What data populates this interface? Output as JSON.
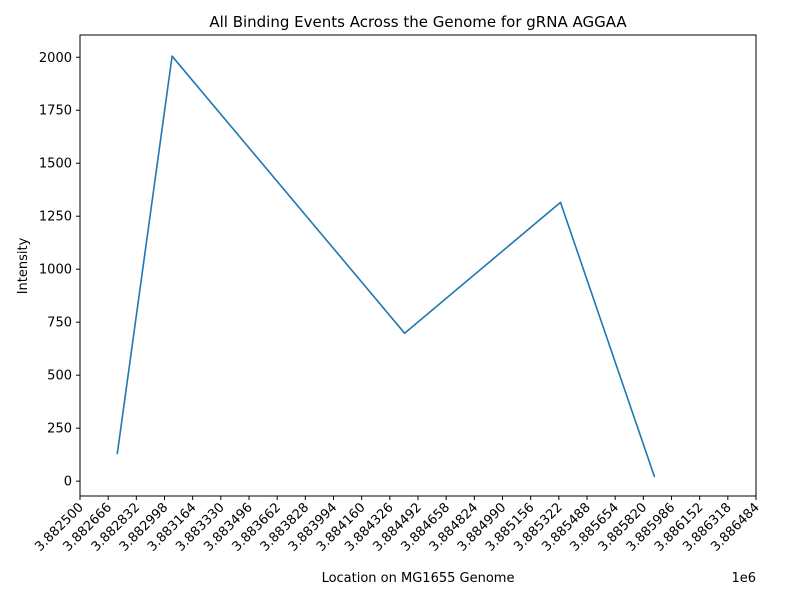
{
  "chart_data": {
    "type": "line",
    "title": "All Binding Events Across the Genome for gRNA AGGAA",
    "xlabel": "Location on MG1655 Genome",
    "ylabel": "Intensity",
    "x_offset_label": "1e6",
    "xlim": [
      3882500,
      3886484
    ],
    "ylim": [
      -70,
      2105
    ],
    "grid": false,
    "x_ticks": [
      {
        "value": 3882500,
        "label": "3.882500"
      },
      {
        "value": 3882666,
        "label": "3.882666"
      },
      {
        "value": 3882832,
        "label": "3.882832"
      },
      {
        "value": 3882998,
        "label": "3.882998"
      },
      {
        "value": 3883164,
        "label": "3.883164"
      },
      {
        "value": 3883330,
        "label": "3.883330"
      },
      {
        "value": 3883496,
        "label": "3.883496"
      },
      {
        "value": 3883662,
        "label": "3.883662"
      },
      {
        "value": 3883828,
        "label": "3.883828"
      },
      {
        "value": 3883994,
        "label": "3.883994"
      },
      {
        "value": 3884160,
        "label": "3.884160"
      },
      {
        "value": 3884326,
        "label": "3.884326"
      },
      {
        "value": 3884492,
        "label": "3.884492"
      },
      {
        "value": 3884658,
        "label": "3.884658"
      },
      {
        "value": 3884824,
        "label": "3.884824"
      },
      {
        "value": 3884990,
        "label": "3.884990"
      },
      {
        "value": 3885156,
        "label": "3.885156"
      },
      {
        "value": 3885322,
        "label": "3.885322"
      },
      {
        "value": 3885488,
        "label": "3.885488"
      },
      {
        "value": 3885654,
        "label": "3.885654"
      },
      {
        "value": 3885820,
        "label": "3.885820"
      },
      {
        "value": 3885986,
        "label": "3.885986"
      },
      {
        "value": 3886152,
        "label": "3.886152"
      },
      {
        "value": 3886318,
        "label": "3.886318"
      },
      {
        "value": 3886484,
        "label": "3.886484"
      }
    ],
    "y_ticks": [
      {
        "value": 0,
        "label": "0"
      },
      {
        "value": 250,
        "label": "250"
      },
      {
        "value": 500,
        "label": "500"
      },
      {
        "value": 750,
        "label": "750"
      },
      {
        "value": 1000,
        "label": "1000"
      },
      {
        "value": 1250,
        "label": "1250"
      },
      {
        "value": 1500,
        "label": "1500"
      },
      {
        "value": 1750,
        "label": "1750"
      },
      {
        "value": 2000,
        "label": "2000"
      }
    ],
    "series": [
      {
        "color": "#1f77b4",
        "x": [
          3882720,
          3883043,
          3884413,
          3885332,
          3885885
        ],
        "y": [
          130,
          2005,
          698,
          1315,
          22
        ]
      }
    ]
  }
}
